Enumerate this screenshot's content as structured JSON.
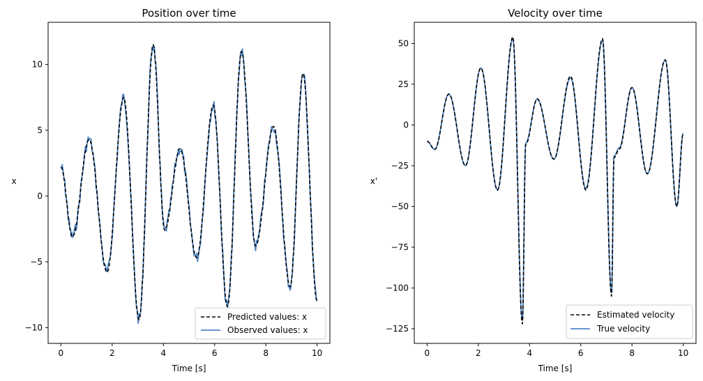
{
  "chart_data": [
    {
      "type": "line",
      "title": "Position over time",
      "xlabel": "Time [s]",
      "ylabel": "x",
      "xlim": [
        -0.5,
        10.5
      ],
      "ylim": [
        -11.2,
        13.2
      ],
      "xticks": [
        0,
        2,
        4,
        6,
        8,
        10
      ],
      "yticks": [
        -10,
        -5,
        0,
        5,
        10
      ],
      "ytick_labels": [
        "−10",
        "−5",
        "0",
        "5",
        "10"
      ],
      "legend_location": "lower-right",
      "series": [
        {
          "name": "Predicted values: x",
          "style": "dashed",
          "color": "#000000",
          "x": [
            0,
            0.45,
            1.1,
            1.8,
            2.45,
            3.05,
            3.6,
            4.05,
            4.65,
            5.3,
            5.95,
            6.5,
            7.05,
            7.6,
            8.3,
            8.95,
            9.45,
            10
          ],
          "y": [
            2.2,
            -3.1,
            4.3,
            -5.8,
            7.5,
            -9.4,
            11.5,
            -2.6,
            3.6,
            -4.7,
            6.9,
            -8.4,
            11.0,
            -3.8,
            5.3,
            -6.9,
            9.3,
            -8.0
          ]
        },
        {
          "name": "Observed values: x",
          "style": "solid",
          "color": "#4f86c6",
          "x": [
            0,
            0.45,
            1.1,
            1.8,
            2.45,
            3.05,
            3.6,
            4.05,
            4.65,
            5.3,
            5.95,
            6.5,
            7.05,
            7.6,
            8.3,
            8.95,
            9.45,
            10
          ],
          "y": [
            2.2,
            -3.1,
            4.3,
            -5.8,
            7.5,
            -9.4,
            11.5,
            -2.6,
            3.6,
            -4.7,
            6.9,
            -8.4,
            11.0,
            -3.8,
            5.3,
            -6.9,
            9.3,
            -8.0
          ],
          "noise": 0.45
        }
      ]
    },
    {
      "type": "line",
      "title": "Velocity over time",
      "xlabel": "Time [s]",
      "ylabel": "x'",
      "xlim": [
        -0.5,
        10.5
      ],
      "ylim": [
        -134,
        63
      ],
      "xticks": [
        0,
        2,
        4,
        6,
        8,
        10
      ],
      "yticks": [
        -125,
        -100,
        -75,
        -50,
        -25,
        0,
        25,
        50
      ],
      "ytick_labels": [
        "−125",
        "−100",
        "−75",
        "−50",
        "−25",
        "0",
        "25",
        "50"
      ],
      "legend_location": "lower-right",
      "series": [
        {
          "name": "Estimated velocity",
          "style": "dashed",
          "color": "#000000",
          "x": [
            0,
            0.3,
            0.85,
            1.5,
            2.1,
            2.75,
            3.35,
            3.72,
            3.85,
            4.3,
            4.95,
            5.6,
            6.2,
            6.85,
            7.2,
            7.3,
            7.5,
            8.0,
            8.6,
            9.3,
            9.75,
            10
          ],
          "y": [
            -10,
            -15,
            19,
            -25,
            35,
            -40,
            54,
            -122,
            -12,
            16,
            -21,
            30,
            -40,
            53,
            -105,
            -20,
            -15,
            23,
            -30,
            40,
            -50,
            -5
          ]
        },
        {
          "name": "True velocity",
          "style": "solid",
          "color": "#4f86c6",
          "x": [
            0,
            0.3,
            0.85,
            1.5,
            2.1,
            2.75,
            3.35,
            3.72,
            3.85,
            4.3,
            4.95,
            5.6,
            6.2,
            6.85,
            7.2,
            7.3,
            7.5,
            8.0,
            8.6,
            9.3,
            9.75,
            10
          ],
          "y": [
            -10,
            -15,
            19,
            -25,
            35,
            -40,
            53,
            -120,
            -11,
            16,
            -21,
            29,
            -39,
            52,
            -103,
            -19,
            -14,
            23,
            -30,
            40,
            -50,
            -5
          ]
        }
      ]
    }
  ]
}
